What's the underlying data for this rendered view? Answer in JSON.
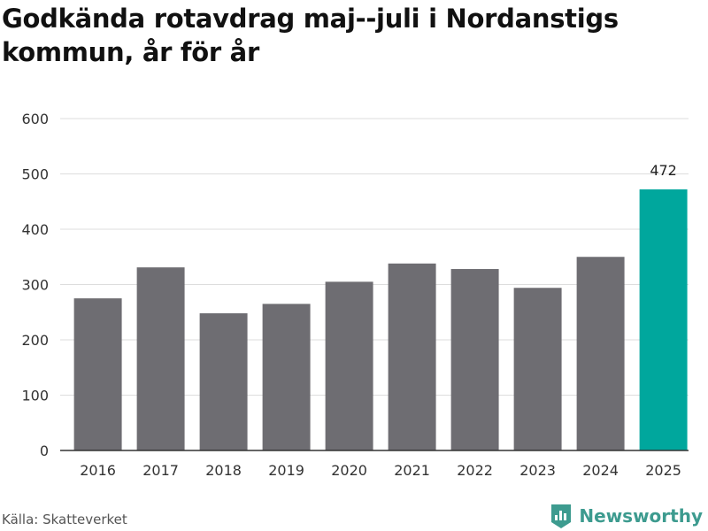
{
  "chart_data": {
    "type": "bar",
    "title": "Godkända rotavdrag maj--juli i Nordanstigs kommun, år för år",
    "categories": [
      "2016",
      "2017",
      "2018",
      "2019",
      "2020",
      "2021",
      "2022",
      "2023",
      "2024",
      "2025"
    ],
    "values": [
      275,
      331,
      248,
      265,
      305,
      338,
      328,
      294,
      350,
      472
    ],
    "ylim": [
      0,
      600
    ],
    "yticks": [
      0,
      100,
      200,
      300,
      400,
      500,
      600
    ],
    "xlabel": "",
    "ylabel": "",
    "grid": true,
    "highlight_index": 9,
    "data_labels": [
      {
        "index": 9,
        "text": "472"
      }
    ],
    "colors": {
      "bar": "#6e6d72",
      "highlight": "#00a79d",
      "grid": "#dddddd",
      "axis": "#333333"
    }
  },
  "footer": {
    "source": "Källa: Skatteverket",
    "brand": "Newsworthy",
    "brand_icon": "bar-chart-logo-icon",
    "brand_color": "#3d9b8f"
  }
}
